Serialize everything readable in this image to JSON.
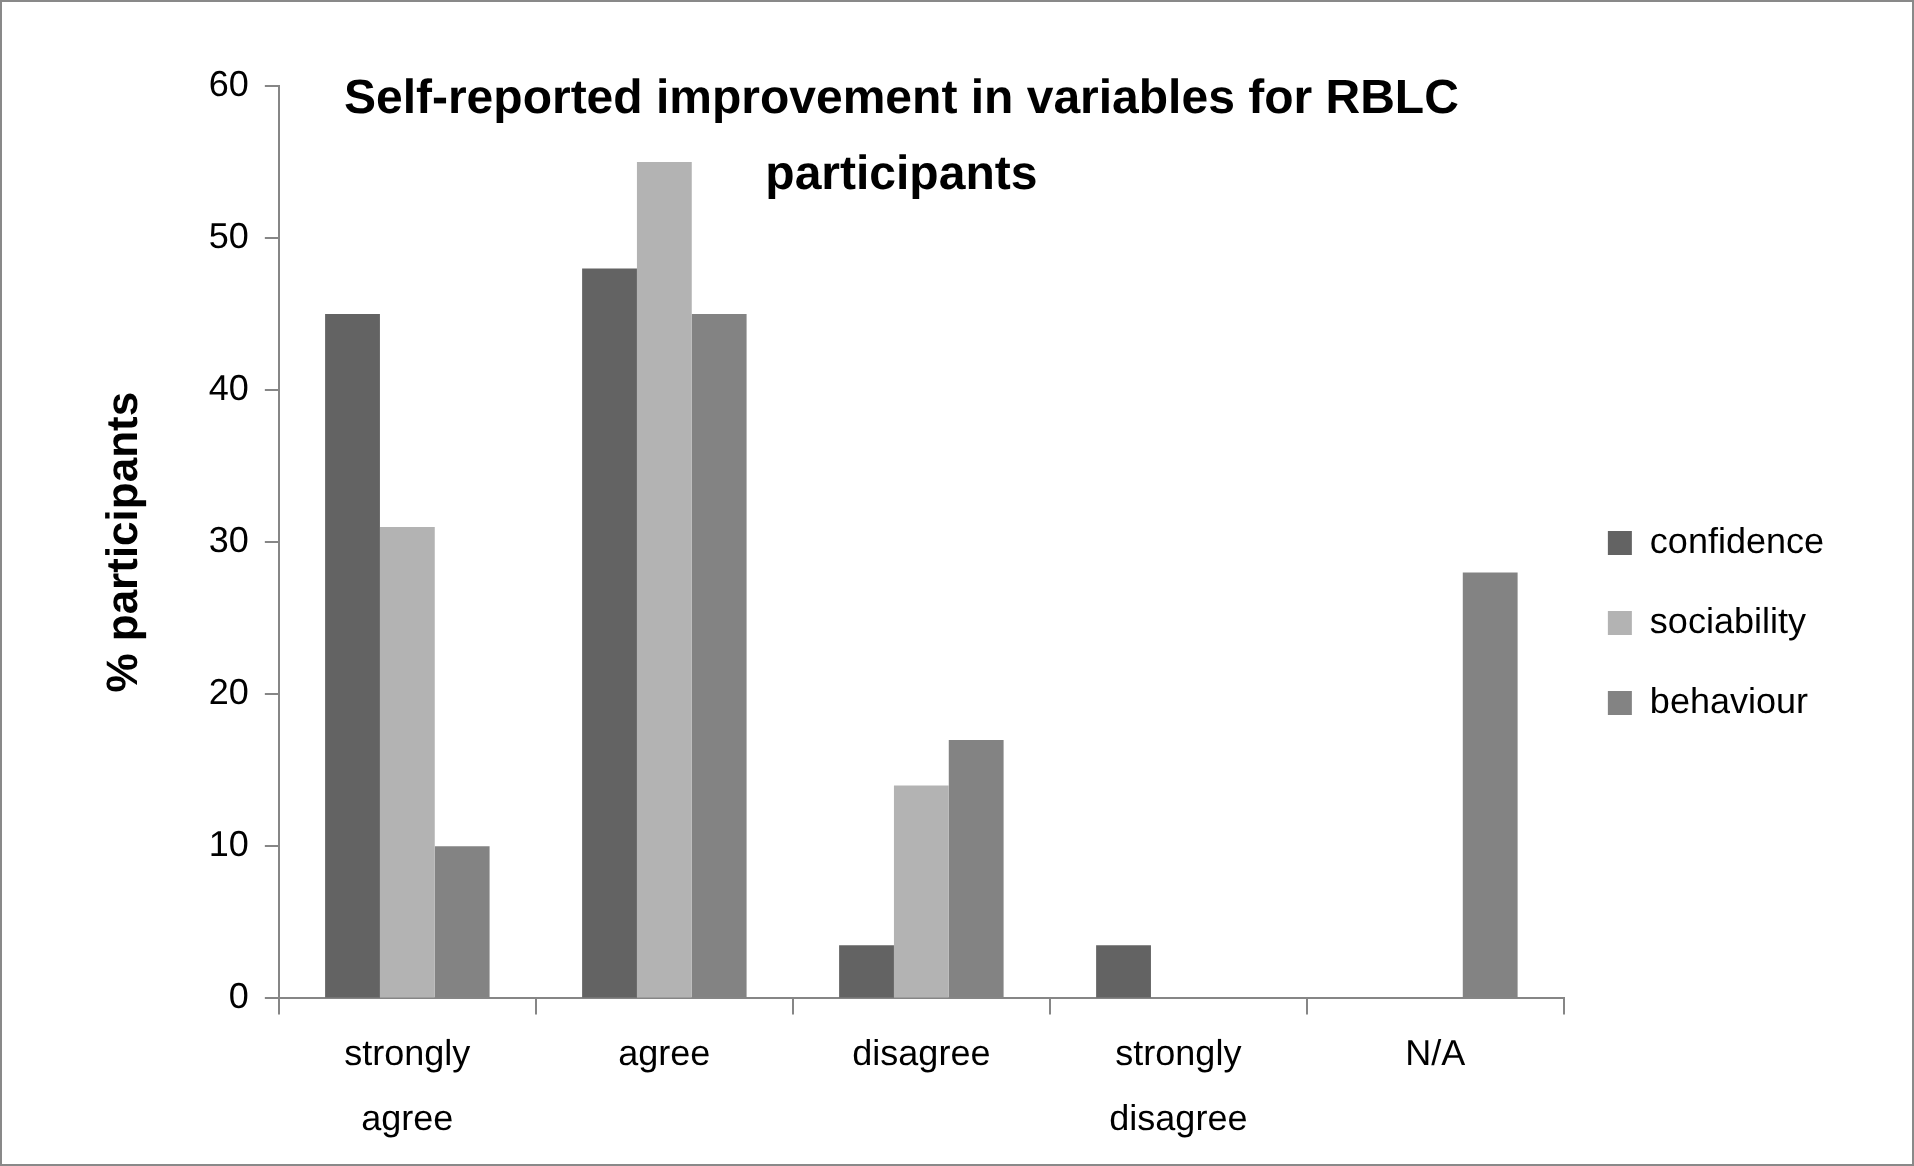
{
  "chart_data": {
    "type": "bar",
    "title": "Self-reported improvement in variables for RBLC participants",
    "ylabel": "% participants",
    "categories": [
      "strongly agree",
      "agree",
      "disagree",
      "strongly disagree",
      "N/A"
    ],
    "series": [
      {
        "name": "confidence",
        "color": "#636363",
        "values": [
          45,
          48,
          3.5,
          3.5,
          0
        ]
      },
      {
        "name": "sociability",
        "color": "#b3b3b3",
        "values": [
          31,
          55,
          14,
          0,
          0
        ]
      },
      {
        "name": "behaviour",
        "color": "#838383",
        "values": [
          10,
          45,
          17,
          0,
          28
        ]
      }
    ],
    "ylim": [
      0,
      60
    ],
    "yticks": [
      0,
      10,
      20,
      30,
      40,
      50,
      60
    ],
    "grid": false,
    "legend": "right"
  }
}
